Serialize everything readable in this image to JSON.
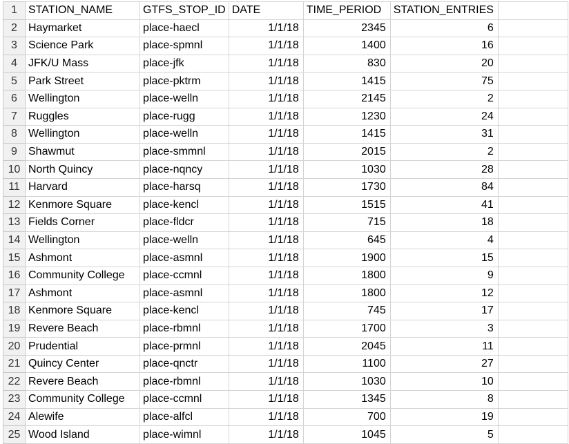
{
  "header_row": {
    "row_number": "1",
    "columns": [
      "STATION_NAME",
      "GTFS_STOP_ID",
      "DATE",
      "TIME_PERIOD",
      "STATION_ENTRIES"
    ]
  },
  "rows": [
    {
      "n": "2",
      "cells": [
        "Haymarket",
        "place-haecl",
        "1/1/18",
        "2345",
        "6"
      ]
    },
    {
      "n": "3",
      "cells": [
        "Science Park",
        "place-spmnl",
        "1/1/18",
        "1400",
        "16"
      ]
    },
    {
      "n": "4",
      "cells": [
        "JFK/U Mass",
        "place-jfk",
        "1/1/18",
        "830",
        "20"
      ]
    },
    {
      "n": "5",
      "cells": [
        "Park Street",
        "place-pktrm",
        "1/1/18",
        "1415",
        "75"
      ]
    },
    {
      "n": "6",
      "cells": [
        "Wellington",
        "place-welln",
        "1/1/18",
        "2145",
        "2"
      ]
    },
    {
      "n": "7",
      "cells": [
        "Ruggles",
        "place-rugg",
        "1/1/18",
        "1230",
        "24"
      ]
    },
    {
      "n": "8",
      "cells": [
        "Wellington",
        "place-welln",
        "1/1/18",
        "1415",
        "31"
      ]
    },
    {
      "n": "9",
      "cells": [
        "Shawmut",
        "place-smmnl",
        "1/1/18",
        "2015",
        "2"
      ]
    },
    {
      "n": "10",
      "cells": [
        "North Quincy",
        "place-nqncy",
        "1/1/18",
        "1030",
        "28"
      ]
    },
    {
      "n": "11",
      "cells": [
        "Harvard",
        "place-harsq",
        "1/1/18",
        "1730",
        "84"
      ]
    },
    {
      "n": "12",
      "cells": [
        "Kenmore Square",
        "place-kencl",
        "1/1/18",
        "1515",
        "41"
      ]
    },
    {
      "n": "13",
      "cells": [
        "Fields Corner",
        "place-fldcr",
        "1/1/18",
        "715",
        "18"
      ]
    },
    {
      "n": "14",
      "cells": [
        "Wellington",
        "place-welln",
        "1/1/18",
        "645",
        "4"
      ]
    },
    {
      "n": "15",
      "cells": [
        "Ashmont",
        "place-asmnl",
        "1/1/18",
        "1900",
        "15"
      ]
    },
    {
      "n": "16",
      "cells": [
        "Community College",
        "place-ccmnl",
        "1/1/18",
        "1800",
        "9"
      ]
    },
    {
      "n": "17",
      "cells": [
        "Ashmont",
        "place-asmnl",
        "1/1/18",
        "1800",
        "12"
      ]
    },
    {
      "n": "18",
      "cells": [
        "Kenmore Square",
        "place-kencl",
        "1/1/18",
        "745",
        "17"
      ]
    },
    {
      "n": "19",
      "cells": [
        "Revere Beach",
        "place-rbmnl",
        "1/1/18",
        "1700",
        "3"
      ]
    },
    {
      "n": "20",
      "cells": [
        "Prudential",
        "place-prmnl",
        "1/1/18",
        "2045",
        "11"
      ]
    },
    {
      "n": "21",
      "cells": [
        "Quincy Center",
        "place-qnctr",
        "1/1/18",
        "1100",
        "27"
      ]
    },
    {
      "n": "22",
      "cells": [
        "Revere Beach",
        "place-rbmnl",
        "1/1/18",
        "1030",
        "10"
      ]
    },
    {
      "n": "23",
      "cells": [
        "Community College",
        "place-ccmnl",
        "1/1/18",
        "1345",
        "8"
      ]
    },
    {
      "n": "24",
      "cells": [
        "Alewife",
        "place-alfcl",
        "1/1/18",
        "700",
        "19"
      ]
    },
    {
      "n": "25",
      "cells": [
        "Wood Island",
        "place-wimnl",
        "1/1/18",
        "1045",
        "5"
      ]
    }
  ]
}
